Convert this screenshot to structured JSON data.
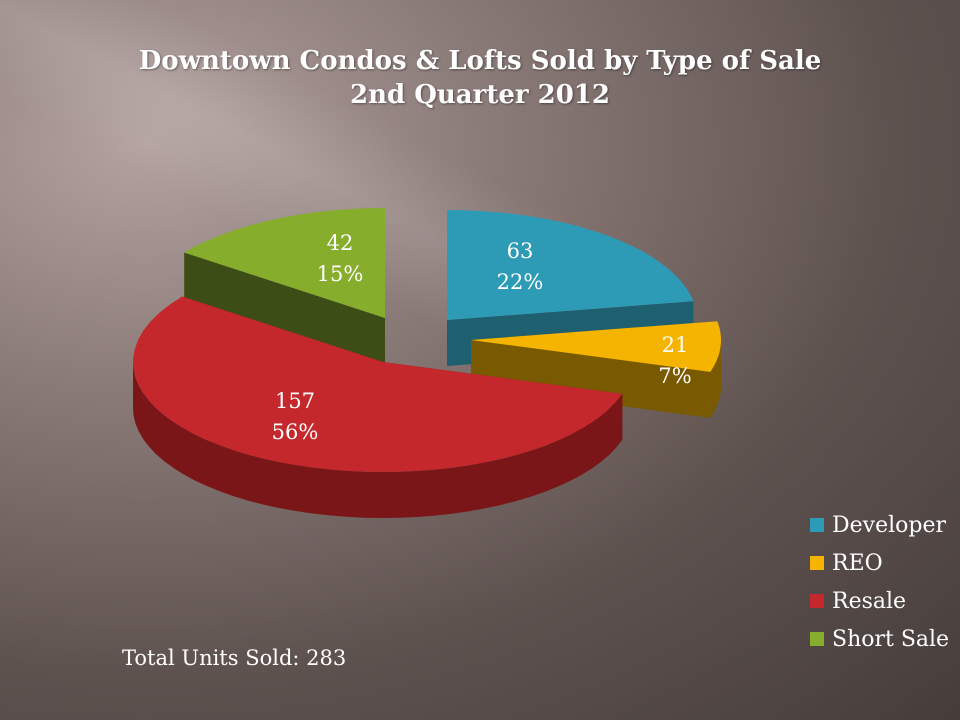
{
  "chart_data": {
    "type": "pie",
    "title": "Downtown Condos & Lofts Sold by Type of Sale",
    "subtitle": "2nd Quarter 2012",
    "slices": [
      {
        "name": "Developer",
        "value": 63,
        "percent": "22%",
        "color": "#2e9bb6",
        "side": "#1e5f70"
      },
      {
        "name": "REO",
        "value": 21,
        "percent": "7%",
        "color": "#f5b400",
        "side": "#7a5a00"
      },
      {
        "name": "Resale",
        "value": 157,
        "percent": "56%",
        "color": "#c4282c",
        "side": "#7a1618"
      },
      {
        "name": "Short Sale",
        "value": 42,
        "percent": "15%",
        "color": "#86ad2c",
        "side": "#3d4d16"
      }
    ],
    "legend_position": "bottom-right",
    "annotation": "Total Units Sold: 283"
  }
}
